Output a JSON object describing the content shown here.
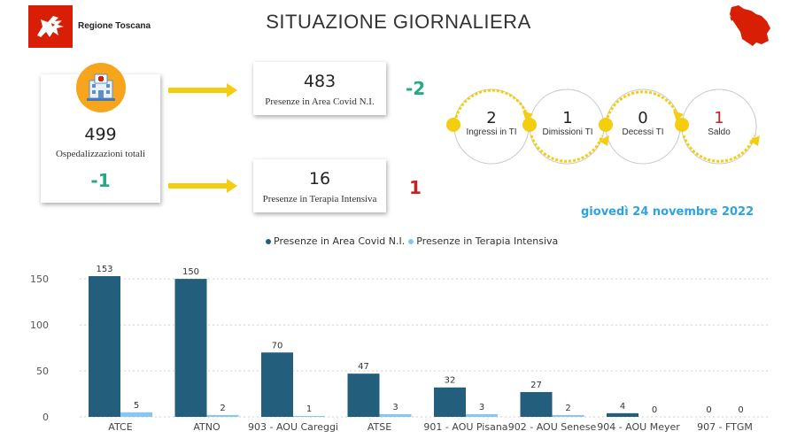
{
  "header": {
    "region_name": "Regione Toscana",
    "title": "SITUAZIONE GIORNALIERA",
    "logo_icon": "pegasus-logo-icon",
    "map_icon": "tuscany-map-icon"
  },
  "hospitalizations": {
    "icon": "hospital-icon",
    "value": "499",
    "label": "Ospedalizzazioni totali",
    "delta": "-1"
  },
  "covid_area": {
    "value": "483",
    "label": "Presenze in Area Covid N.I.",
    "delta": "-2"
  },
  "intensive": {
    "value": "16",
    "label": "Presenze in Terapia Intensiva",
    "delta": "1"
  },
  "flow": [
    {
      "value": "2",
      "label": "Ingressi in TI"
    },
    {
      "value": "1",
      "label": "Dimissioni TI"
    },
    {
      "value": "0",
      "label": "Decessi TI"
    },
    {
      "value": "1",
      "label": "Saldo"
    }
  ],
  "date": "giovedì 24 novembre 2022",
  "colors": {
    "series_covid": "#245e7d",
    "series_ti": "#87c7f0",
    "accent_yellow": "#f5cd0f",
    "positive": "#27a886",
    "negative": "#cc1f1f",
    "date_blue": "#2ea3dc",
    "hospital_orange": "#f7a51d",
    "logo_red": "#d81e05"
  },
  "chart_data": {
    "type": "bar",
    "categories": [
      "ATCE",
      "ATNO",
      "903 - AOU Careggi",
      "ATSE",
      "901 - AOU Pisana",
      "902 - AOU Senese",
      "904 - AOU Meyer",
      "907 - FTGM"
    ],
    "series": [
      {
        "name": "Presenze in Area Covid N.I.",
        "values": [
          153,
          150,
          70,
          47,
          32,
          27,
          4,
          0
        ]
      },
      {
        "name": "Presenze in Terapia Intensiva",
        "values": [
          5,
          2,
          1,
          3,
          3,
          2,
          0,
          0
        ]
      }
    ],
    "yticks": [
      0,
      50,
      100,
      150
    ],
    "ylim": [
      0,
      160
    ],
    "grid": true,
    "legend": "top-center",
    "title": "",
    "xlabel": "",
    "ylabel": ""
  }
}
